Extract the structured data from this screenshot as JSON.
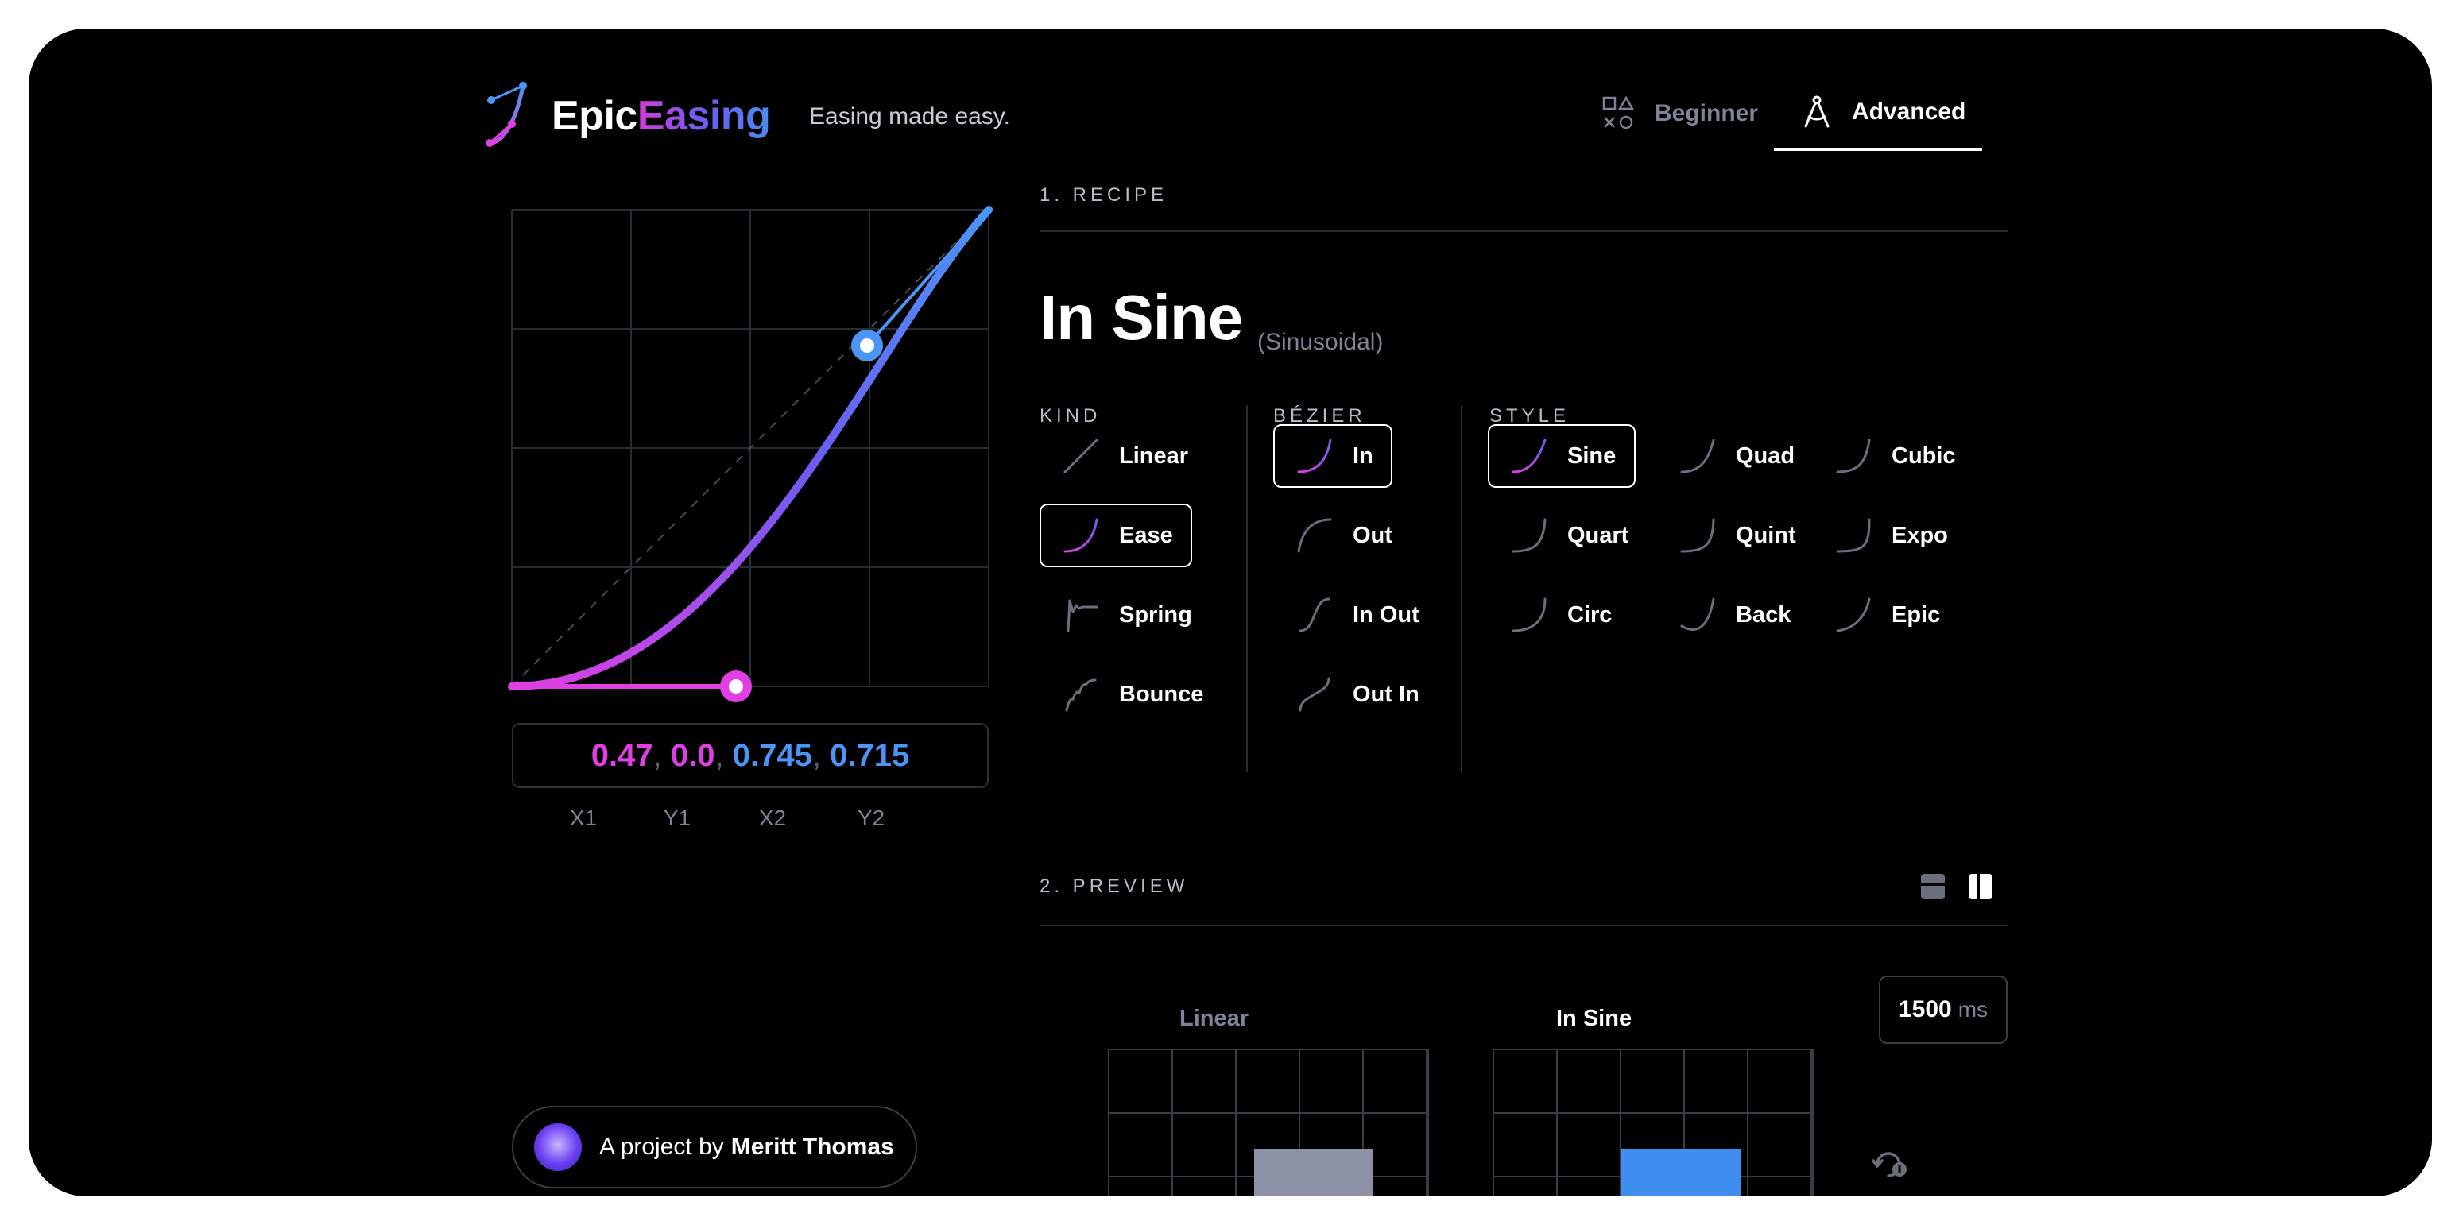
{
  "header": {
    "logo_part1": "Epic",
    "logo_part2": "Easing",
    "tagline": "Easing made easy.",
    "modes": [
      {
        "label": "Beginner",
        "icon": "shapes-icon",
        "active": false
      },
      {
        "label": "Advanced",
        "icon": "compass-icon",
        "active": true
      }
    ]
  },
  "recipe": {
    "section_label": "1. RECIPE",
    "title": "In Sine",
    "subtitle": "(Sinusoidal)",
    "kind": {
      "label": "KIND",
      "options": [
        {
          "label": "Linear",
          "selected": false
        },
        {
          "label": "Ease",
          "selected": true
        },
        {
          "label": "Spring",
          "selected": false
        },
        {
          "label": "Bounce",
          "selected": false
        }
      ]
    },
    "bezier": {
      "label": "BÉZIER",
      "options": [
        {
          "label": "In",
          "selected": true
        },
        {
          "label": "Out",
          "selected": false
        },
        {
          "label": "In Out",
          "selected": false
        },
        {
          "label": "Out In",
          "selected": false
        }
      ]
    },
    "style": {
      "label": "STYLE",
      "options": [
        {
          "label": "Sine",
          "selected": true
        },
        {
          "label": "Quad",
          "selected": false
        },
        {
          "label": "Cubic",
          "selected": false
        },
        {
          "label": "Quart",
          "selected": false
        },
        {
          "label": "Quint",
          "selected": false
        },
        {
          "label": "Expo",
          "selected": false
        },
        {
          "label": "Circ",
          "selected": false
        },
        {
          "label": "Back",
          "selected": false
        },
        {
          "label": "Epic",
          "selected": false
        }
      ]
    }
  },
  "curve": {
    "x1": 0.47,
    "y1": 0.0,
    "x2": 0.745,
    "y2": 0.715,
    "x1_text": "0.47",
    "y1_text": "0.0",
    "x2_text": "0.745",
    "y2_text": "0.715",
    "separator": ",",
    "axis_labels": [
      "X1",
      "Y1",
      "X2",
      "Y2"
    ],
    "colors": {
      "start": "#e13ee3",
      "mid": "#6d5cf2",
      "end": "#4a95f5"
    }
  },
  "preview": {
    "section_label": "2. PREVIEW",
    "left_label": "Linear",
    "right_label": "In Sine",
    "duration_value": "1500",
    "duration_unit": "ms"
  },
  "author": {
    "prefix": "A project by",
    "name": "Meritt Thomas"
  }
}
